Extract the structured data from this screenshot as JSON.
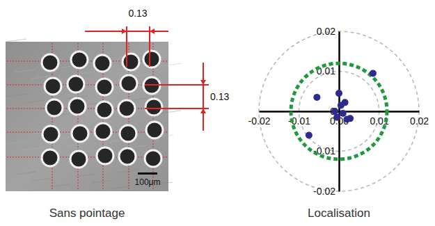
{
  "photo": {
    "dimension_labels": [
      "0.13",
      "0.13"
    ],
    "scale_bar": "100μm",
    "caption": "Sans pointage"
  },
  "chart_data": {
    "type": "scatter",
    "title": "Localisation",
    "x": [
      0.0085,
      -0.0055,
      0.0,
      -0.001,
      0.0005,
      0.001,
      -0.0005,
      0.002,
      0.0028,
      -0.0075,
      0.0015
    ],
    "values": [
      0.0095,
      0.0035,
      0.0045,
      0.0,
      0.0015,
      -0.0005,
      -0.0015,
      -0.002,
      -0.0018,
      -0.006,
      0.0022
    ],
    "color": "#2e2b8c",
    "xlim": [
      -0.02,
      0.02
    ],
    "ylim": [
      -0.02,
      0.02
    ],
    "xticks": [
      -0.02,
      -0.01,
      {
        "value": 0,
        "label": "0.00"
      },
      0.01,
      0.02
    ],
    "yticks": [
      -0.02,
      -0.01,
      0,
      0.01,
      0.02
    ],
    "grid": true,
    "tolerance": {
      "radius": 0.012,
      "color": "#1f9a3e"
    }
  }
}
